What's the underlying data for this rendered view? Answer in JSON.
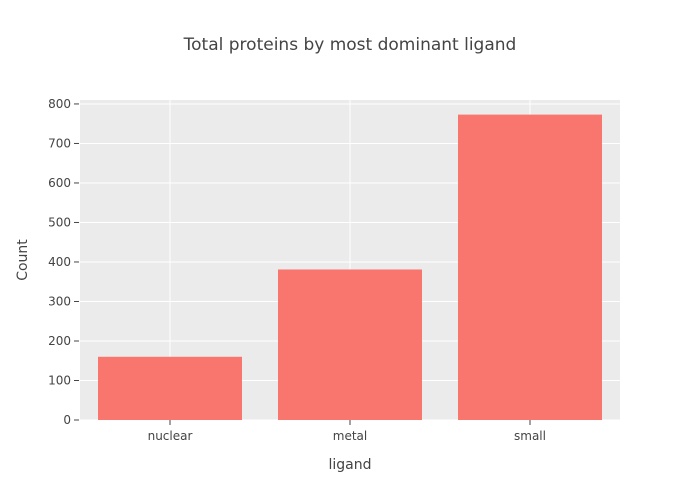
{
  "chart_data": {
    "type": "bar",
    "title": "Total proteins by most dominant ligand",
    "xlabel": "ligand",
    "ylabel": "Count",
    "categories": [
      "nuclear",
      "metal",
      "small"
    ],
    "values": [
      160,
      381,
      773
    ],
    "ylim": [
      0,
      810
    ],
    "yticks": [
      0,
      100,
      200,
      300,
      400,
      500,
      600,
      700,
      800
    ],
    "grid": true,
    "legend": "none",
    "colors": {
      "bar": "#f8766d",
      "plot_bg": "#ebebeb",
      "grid": "#ffffff",
      "text": "#444444",
      "axis_tick": "#444444"
    }
  }
}
